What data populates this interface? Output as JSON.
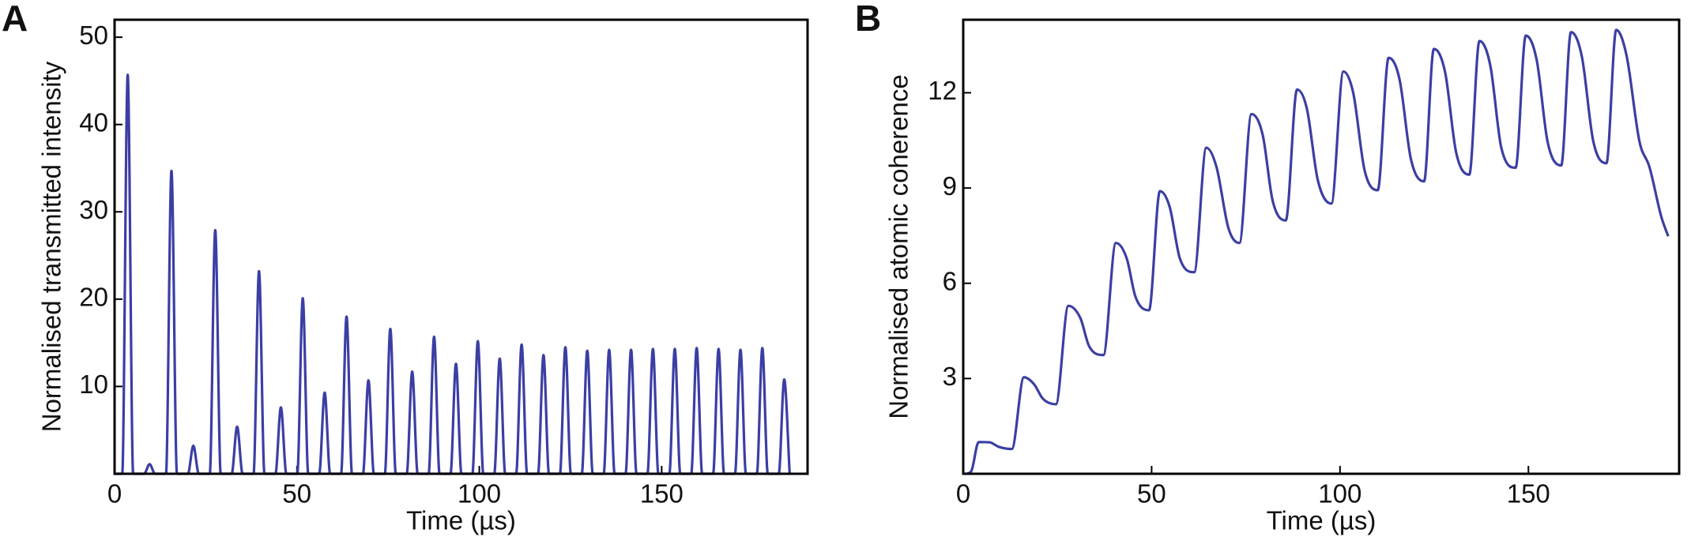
{
  "chart_data": [
    {
      "type": "line",
      "panel_label": "A",
      "xlabel": "Time (µs)",
      "ylabel": "Normalised transmitted intensity",
      "color": "#3b3fa3",
      "xlim": [
        0,
        190
      ],
      "xticks": [
        0,
        50,
        100,
        150
      ],
      "ylim": [
        0,
        52
      ],
      "yticks": [
        10,
        20,
        30,
        40,
        50
      ],
      "x": [
        0,
        2.1,
        3.6,
        5.1,
        8.1,
        9.6,
        11.1,
        14.1,
        15.6,
        17.1,
        20.1,
        21.6,
        23.1,
        26.1,
        27.6,
        29.1,
        32.1,
        33.6,
        35.1,
        38.1,
        39.6,
        41.1,
        44.1,
        45.6,
        47.1,
        50.1,
        51.6,
        53.1,
        56.1,
        57.6,
        59.1,
        62.1,
        63.6,
        65.1,
        68.1,
        69.6,
        71.1,
        74.1,
        75.6,
        77.1,
        80.1,
        81.6,
        83.1,
        86.1,
        87.6,
        89.1,
        92.1,
        93.6,
        95.1,
        98.1,
        99.6,
        101.1,
        104.1,
        105.6,
        107.1,
        110.1,
        111.6,
        113.1,
        116.1,
        117.6,
        119.1,
        122.1,
        123.6,
        125.1,
        128.1,
        129.6,
        131.1,
        134.1,
        135.6,
        137.1,
        140.1,
        141.6,
        143.1,
        146.1,
        147.6,
        149.1,
        152.1,
        153.6,
        155.1,
        158.1,
        159.6,
        161.1,
        164.1,
        165.6,
        167.1,
        170.1,
        171.6,
        173.1,
        176.1,
        177.6,
        179.1,
        182.1,
        183.6,
        185.1
      ],
      "values": [
        0,
        0,
        45.7,
        0,
        0,
        1.1,
        0,
        0,
        34.7,
        0,
        0,
        3.2,
        0,
        0,
        27.9,
        0,
        0,
        5.4,
        0,
        0,
        23.2,
        0,
        0,
        7.6,
        0,
        0,
        20.1,
        0,
        0,
        9.3,
        0,
        0,
        18.0,
        0,
        0,
        10.7,
        0,
        0,
        16.6,
        0,
        0,
        11.7,
        0,
        0,
        15.7,
        0,
        0,
        12.6,
        0,
        0,
        15.2,
        0,
        0,
        13.2,
        0,
        0,
        14.8,
        0,
        0,
        13.6,
        0,
        0,
        14.5,
        0,
        0,
        14.1,
        0,
        0,
        14.2,
        0,
        0,
        14.2,
        0,
        0,
        14.3,
        0,
        0,
        14.3,
        0,
        0,
        14.4,
        0,
        0,
        14.3,
        0,
        0,
        14.2,
        0,
        0,
        14.4,
        0,
        0,
        10.8,
        0
      ]
    },
    {
      "type": "line",
      "panel_label": "B",
      "xlabel": "Time (µs)",
      "ylabel": "Normalised atomic coherence",
      "color": "#3b3fa3",
      "xlim": [
        0,
        190
      ],
      "xticks": [
        0,
        50,
        100,
        150
      ],
      "ylim": [
        0,
        14.3
      ],
      "yticks": [
        3,
        6,
        9,
        12
      ],
      "x": [
        1.0,
        2.2,
        4.1,
        7.0,
        9.4,
        12.9,
        16.1,
        18.8,
        21.1,
        24.6,
        27.9,
        31.1,
        33.4,
        37.2,
        40.5,
        43.4,
        45.7,
        49.3,
        52.2,
        54.8,
        57.5,
        61.3,
        64.5,
        67.2,
        70.4,
        73.3,
        76.5,
        79.5,
        82.1,
        85.6,
        88.6,
        91.2,
        94.1,
        97.7,
        100.9,
        103.5,
        106.5,
        110.0,
        112.9,
        115.8,
        118.8,
        122.3,
        124.9,
        127.9,
        130.8,
        134.3,
        137.0,
        139.9,
        142.8,
        146.6,
        149.3,
        152.2,
        155.1,
        158.7,
        161.3,
        164.2,
        167.2,
        170.7,
        173.3,
        176.0,
        179.5,
        182.1,
        185.3,
        187.1
      ],
      "values": [
        0,
        0.1,
        1.0,
        0.99,
        0.85,
        0.78,
        3.04,
        2.82,
        2.37,
        2.19,
        5.29,
        4.9,
        4.02,
        3.74,
        7.27,
        6.78,
        5.58,
        5.15,
        8.9,
        8.4,
        6.78,
        6.35,
        10.27,
        9.67,
        7.73,
        7.27,
        11.33,
        10.66,
        8.61,
        7.98,
        12.1,
        11.5,
        9.25,
        8.51,
        12.67,
        12.0,
        9.57,
        8.93,
        13.1,
        12.42,
        9.92,
        9.21,
        13.38,
        12.64,
        10.13,
        9.42,
        13.63,
        12.85,
        10.27,
        9.64,
        13.8,
        13.03,
        10.45,
        9.71,
        13.91,
        13.13,
        10.48,
        9.78,
        13.98,
        13.2,
        10.45,
        9.67,
        8.08,
        7.48
      ]
    }
  ]
}
